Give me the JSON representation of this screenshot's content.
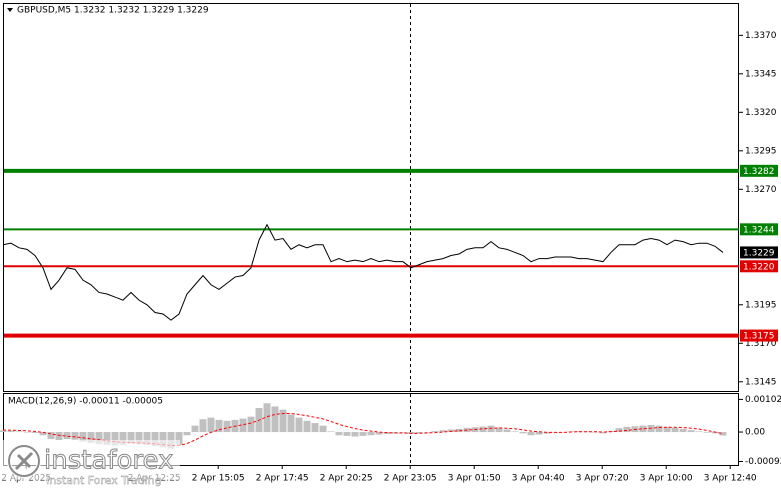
{
  "chart_data": [
    {
      "type": "line",
      "title": "GBPUSD,M5  1.3232 1.3232 1.3229 1.3229",
      "xlim": [
        0,
        92
      ],
      "xticks": [
        {
          "value": 2.9,
          "label": "2 Apr 2025"
        },
        {
          "value": 18.9,
          "label": "2 Apr 12:25"
        },
        {
          "value": 26.9,
          "label": "2 Apr 15:05"
        },
        {
          "value": 34.9,
          "label": "2 Apr 17:45"
        },
        {
          "value": 42.9,
          "label": "2 Apr 20:25"
        },
        {
          "value": 50.9,
          "label": "2 Apr 23:05"
        },
        {
          "value": 58.9,
          "label": "3 Apr 01:50"
        },
        {
          "value": 66.9,
          "label": "3 Apr 04:40"
        },
        {
          "value": 74.9,
          "label": "3 Apr 07:20"
        },
        {
          "value": 82.9,
          "label": "3 Apr 10:00"
        },
        {
          "value": 90.9,
          "label": "3 Apr 12:40"
        }
      ],
      "ylim": [
        1.3139,
        1.3391
      ],
      "yticks": [
        {
          "value": 1.337,
          "label": "1.3370"
        },
        1.3345,
        {
          "value": 1.332,
          "label": "1.3320"
        },
        1.3295,
        {
          "value": 1.327,
          "label": "1.3270"
        },
        1.3195,
        {
          "value": 1.317,
          "label": "1.3170"
        },
        1.3145
      ],
      "series": [
        {
          "color": "#000000",
          "values": [
            1.3234,
            1.3235,
            1.3232,
            1.3231,
            1.3227,
            1.3219,
            1.3205,
            1.3211,
            1.3219,
            1.3218,
            1.3211,
            1.3208,
            1.3203,
            1.3202,
            1.32,
            1.3198,
            1.3203,
            1.3198,
            1.3195,
            1.319,
            1.3189,
            1.3185,
            1.3189,
            1.3202,
            1.3208,
            1.3214,
            1.3208,
            1.3205,
            1.3209,
            1.3213,
            1.3214,
            1.3219,
            1.3237,
            1.3247,
            1.3237,
            1.3238,
            1.3231,
            1.3234,
            1.3232,
            1.3234,
            1.3234,
            1.3223,
            1.3225,
            1.3223,
            1.3224,
            1.3223,
            1.3225,
            1.3223,
            1.3224,
            1.3223,
            1.3223,
            1.3219,
            1.3221,
            1.3223,
            1.3224,
            1.3225,
            1.3227,
            1.3228,
            1.3231,
            1.3232,
            1.3232,
            1.3236,
            1.3232,
            1.3231,
            1.3229,
            1.3227,
            1.3223,
            1.3225,
            1.3225,
            1.3226,
            1.3226,
            1.3226,
            1.3225,
            1.3225,
            1.3224,
            1.3223,
            1.3229,
            1.3234,
            1.3234,
            1.3234,
            1.3237,
            1.3238,
            1.3237,
            1.3234,
            1.3237,
            1.3236,
            1.3234,
            1.3235,
            1.3235,
            1.3233,
            1.3229
          ]
        }
      ],
      "levels": [
        {
          "value": 1.3282,
          "color": "#008000"
        },
        {
          "value": 1.3244,
          "color": "#008000"
        },
        {
          "value": 1.322,
          "label": "1.3220",
          "color": "#e00000"
        },
        {
          "value": 1.3175,
          "color": "#e00000"
        }
      ]
    },
    {
      "type": "macd",
      "title": "MACD(12,26,9) -0.00011 -0.00005",
      "ylim": [
        -0.00103,
        0.00122
      ],
      "yticks": [
        0.00102,
        {
          "value": 0,
          "label": "0.00"
        },
        -0.00092
      ],
      "series": [
        {
          "type": "bar",
          "color": "#c0c0c0",
          "values": [
            5e-05,
            4e-05,
            2e-05,
            0,
            -3e-05,
            -0.0001,
            -0.00022,
            -0.00025,
            -0.00022,
            -0.00024,
            -0.0003,
            -0.00034,
            -0.00038,
            -0.0004,
            -0.00042,
            -0.0004,
            -0.00036,
            -0.00038,
            -0.0004,
            -0.00044,
            -0.00048,
            -0.00052,
            -0.0004,
            -0.0001,
            0.0002,
            0.0004,
            0.00045,
            0.00038,
            0.00035,
            0.00038,
            0.00042,
            0.00048,
            0.00075,
            0.0009,
            0.0008,
            0.0007,
            0.00055,
            0.00045,
            0.00035,
            0.00028,
            0.0002,
            2e-05,
            -0.0001,
            -0.00012,
            -0.00014,
            -0.00012,
            -0.0001,
            -8e-05,
            -6e-05,
            -4e-05,
            -2e-05,
            -6e-05,
            -3e-05,
            0,
            3e-05,
            6e-05,
            8e-05,
            0.0001,
            0.00013,
            0.00015,
            0.00017,
            0.0002,
            0.00014,
            8e-05,
            2e-05,
            -4e-05,
            -0.0001,
            -8e-05,
            -5e-05,
            -2e-05,
            0,
            2e-05,
            3e-05,
            2e-05,
            -1e-05,
            -4e-05,
            4e-05,
            0.00012,
            0.00016,
            0.00018,
            0.0002,
            0.00022,
            0.0002,
            0.00016,
            0.00014,
            0.0001,
            6e-05,
            2e-05,
            -2e-05,
            -4e-05,
            -0.00011
          ]
        },
        {
          "type": "line",
          "color": "#ff0000",
          "values": [
            6e-05,
            6e-05,
            5e-05,
            4e-05,
            2e-05,
            -1e-05,
            -6e-05,
            -0.0001,
            -0.00013,
            -0.00015,
            -0.00018,
            -0.00021,
            -0.00024,
            -0.00027,
            -0.0003,
            -0.00032,
            -0.00033,
            -0.00034,
            -0.00035,
            -0.00037,
            -0.00039,
            -0.00042,
            -0.00042,
            -0.00036,
            -0.00025,
            -0.00012,
            -1e-05,
            7e-05,
            0.00013,
            0.00018,
            0.00023,
            0.00028,
            0.00037,
            0.00048,
            0.00055,
            0.00058,
            0.00058,
            0.00055,
            0.00051,
            0.00046,
            0.00041,
            0.00033,
            0.00024,
            0.00017,
            0.00011,
            6e-05,
            3e-05,
            0,
            -2e-05,
            -3e-05,
            -3e-05,
            -4e-05,
            -4e-05,
            -3e-05,
            -2e-05,
            0,
            2e-05,
            4e-05,
            6e-05,
            8e-05,
            0.0001,
            0.00012,
            0.00013,
            0.00012,
            0.0001,
            7e-05,
            3e-05,
            1e-05,
            -1e-05,
            -1e-05,
            -1e-05,
            0,
            1e-05,
            1e-05,
            1e-05,
            0,
            1e-05,
            3e-05,
            5e-05,
            8e-05,
            0.0001,
            0.00012,
            0.00014,
            0.00015,
            0.00015,
            0.00014,
            0.00012,
            9e-05,
            5e-05,
            0,
            -5e-05
          ]
        }
      ]
    }
  ],
  "watermark": {
    "brand": "instaforex",
    "tagline": "Instant Forex Trading"
  }
}
